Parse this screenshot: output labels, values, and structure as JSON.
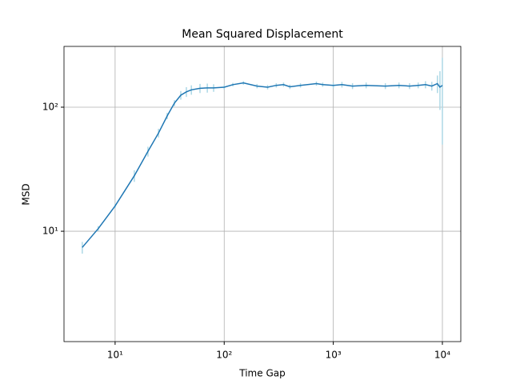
{
  "chart_data": {
    "type": "line",
    "title": "Mean Squared Displacement",
    "x_label": "Time Gap",
    "y_label": "MSD",
    "x": [
      5,
      7,
      10,
      15,
      20,
      25,
      30,
      35,
      40,
      45,
      50,
      60,
      70,
      80,
      100,
      120,
      150,
      200,
      250,
      300,
      350,
      400,
      500,
      700,
      800,
      1000,
      1200,
      1500,
      2000,
      3000,
      4000,
      5000,
      6000,
      7000,
      8000,
      9000,
      9500,
      10000
    ],
    "series": [
      {
        "name": "MSD",
        "color": "#1f77b4",
        "error_color": "#add8e6",
        "values": [
          7.4,
          10.5,
          16,
          28,
          44,
          62,
          85,
          108,
          125,
          133,
          138,
          142,
          143,
          143,
          145,
          152,
          157,
          148,
          145,
          150,
          152,
          146,
          150,
          155,
          152,
          150,
          152,
          148,
          150,
          148,
          150,
          148,
          150,
          152,
          148,
          155,
          145,
          150
        ],
        "errors": [
          0.8,
          0.5,
          0.6,
          3,
          4,
          5,
          5,
          6,
          10,
          12,
          12,
          12,
          12,
          10,
          6,
          5,
          5,
          6,
          6,
          6,
          6,
          6,
          6,
          6,
          6,
          8,
          8,
          8,
          8,
          8,
          8,
          8,
          8,
          10,
          12,
          25,
          50,
          100
        ]
      }
    ],
    "xlim": [
      3.4,
      14750
    ],
    "ylim": [
      1.29,
      309
    ],
    "log_x": true,
    "log_y": true,
    "xticks": [
      {
        "value": 10,
        "label": "10¹"
      },
      {
        "value": 100,
        "label": "10²"
      },
      {
        "value": 1000,
        "label": "10³"
      },
      {
        "value": 10000,
        "label": "10⁴"
      }
    ],
    "yticks": [
      {
        "value": 10,
        "label": "10¹"
      },
      {
        "value": 100,
        "label": "10²"
      }
    ],
    "grid": true
  }
}
